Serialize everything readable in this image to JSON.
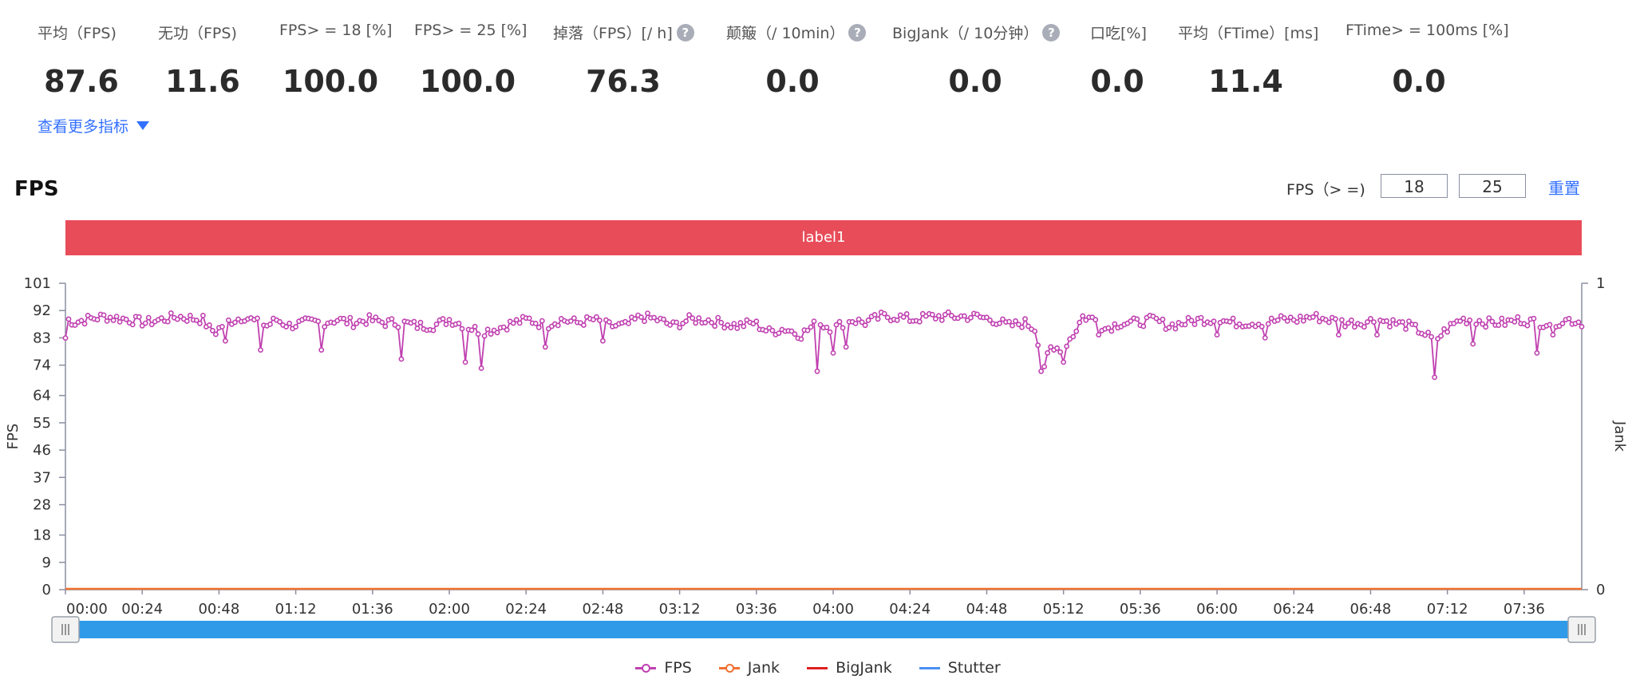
{
  "metrics": [
    {
      "label": "平均（FPS)",
      "value": "87.6",
      "help": false
    },
    {
      "label": "无功（FPS)",
      "value": "11.6",
      "help": false
    },
    {
      "label": "FPS> = 18 [%]",
      "value": "100.0",
      "help": false
    },
    {
      "label": "FPS> = 25 [%]",
      "value": "100.0",
      "help": false
    },
    {
      "label": "掉落（FPS）[/ h]",
      "value": "76.3",
      "help": true
    },
    {
      "label": "颠簸（/ 10min）",
      "value": "0.0",
      "help": true
    },
    {
      "label": "BigJank（/ 10分钟）",
      "value": "0.0",
      "help": true
    },
    {
      "label": "口吃[%]",
      "value": "0.0",
      "help": false
    },
    {
      "label": "平均（FTime）[ms]",
      "value": "11.4",
      "help": false
    },
    {
      "label": "FTime> = 100ms [%]",
      "value": "0.0",
      "help": false
    }
  ],
  "more_metrics_label": "查看更多指标",
  "section_title": "FPS",
  "threshold": {
    "label": "FPS（> =)",
    "low": "18",
    "high": "25",
    "reset_label": "重置"
  },
  "label_band": "label1",
  "colors": {
    "fps": "#c040b0",
    "jank": "#f07030",
    "bigjank": "#e02020",
    "stutter": "#4a90f0",
    "slider": "#2f9ae8",
    "label_band": "#e84c59",
    "link": "#3370ff"
  },
  "chart_data": {
    "type": "line",
    "title": "FPS",
    "ylabel": "FPS",
    "y2label": "Jank",
    "ylim": [
      0,
      101
    ],
    "y2lim": [
      0,
      1
    ],
    "yticks": [
      0,
      9,
      18,
      28,
      37,
      46,
      55,
      64,
      74,
      83,
      92,
      101
    ],
    "y2ticks": [
      0,
      1
    ],
    "xlim_seconds": [
      0,
      474
    ],
    "xtick_labels": [
      "00:00",
      "00:24",
      "00:48",
      "01:12",
      "01:36",
      "02:00",
      "02:24",
      "02:48",
      "03:12",
      "03:36",
      "04:00",
      "04:24",
      "04:48",
      "05:12",
      "05:36",
      "06:00",
      "06:24",
      "06:48",
      "07:12",
      "07:36"
    ],
    "legend": [
      "FPS",
      "Jank",
      "BigJank",
      "Stutter"
    ],
    "series": [
      {
        "name": "FPS",
        "axis": "left",
        "sample_interval_s": 1,
        "baseline": [
          [
            0,
            83
          ],
          [
            1,
            89
          ],
          [
            3,
            88
          ],
          [
            6,
            89
          ],
          [
            12,
            90
          ],
          [
            20,
            89
          ],
          [
            25,
            88
          ],
          [
            35,
            90
          ],
          [
            43,
            89
          ],
          [
            45,
            86
          ],
          [
            47,
            85
          ],
          [
            50,
            88
          ],
          [
            53,
            89
          ],
          [
            56,
            90
          ],
          [
            60,
            88
          ],
          [
            63,
            87
          ],
          [
            66,
            89
          ],
          [
            70,
            87
          ],
          [
            75,
            88
          ],
          [
            80,
            88
          ],
          [
            85,
            89
          ],
          [
            90,
            88
          ],
          [
            95,
            89
          ],
          [
            100,
            88
          ],
          [
            105,
            88
          ],
          [
            110,
            87
          ],
          [
            115,
            87
          ],
          [
            120,
            89
          ],
          [
            125,
            87
          ],
          [
            130,
            85
          ],
          [
            135,
            86
          ],
          [
            140,
            88
          ],
          [
            145,
            89
          ],
          [
            150,
            87
          ],
          [
            155,
            89
          ],
          [
            160,
            88
          ],
          [
            165,
            89
          ],
          [
            170,
            87
          ],
          [
            175,
            87
          ],
          [
            180,
            90
          ],
          [
            185,
            89
          ],
          [
            190,
            87
          ],
          [
            195,
            89
          ],
          [
            200,
            89
          ],
          [
            205,
            88
          ],
          [
            210,
            87
          ],
          [
            215,
            88
          ],
          [
            220,
            85
          ],
          [
            225,
            86
          ],
          [
            230,
            84
          ],
          [
            235,
            88
          ],
          [
            240,
            86
          ],
          [
            245,
            89
          ],
          [
            250,
            88
          ],
          [
            255,
            90
          ],
          [
            260,
            90
          ],
          [
            265,
            89
          ],
          [
            270,
            90
          ],
          [
            275,
            90
          ],
          [
            280,
            90
          ],
          [
            285,
            90
          ],
          [
            290,
            89
          ],
          [
            295,
            87
          ],
          [
            300,
            88
          ],
          [
            303,
            86
          ],
          [
            306,
            74
          ],
          [
            308,
            79
          ],
          [
            312,
            80
          ],
          [
            315,
            84
          ],
          [
            318,
            90
          ],
          [
            322,
            89
          ],
          [
            325,
            86
          ],
          [
            330,
            88
          ],
          [
            335,
            88
          ],
          [
            340,
            89
          ],
          [
            345,
            87
          ],
          [
            350,
            88
          ],
          [
            355,
            89
          ],
          [
            360,
            89
          ],
          [
            365,
            88
          ],
          [
            370,
            88
          ],
          [
            375,
            88
          ],
          [
            380,
            89
          ],
          [
            385,
            89
          ],
          [
            390,
            90
          ],
          [
            395,
            89
          ],
          [
            400,
            88
          ],
          [
            405,
            88
          ],
          [
            410,
            89
          ],
          [
            415,
            88
          ],
          [
            420,
            87
          ],
          [
            424,
            85
          ],
          [
            428,
            82
          ],
          [
            432,
            86
          ],
          [
            436,
            89
          ],
          [
            440,
            89
          ],
          [
            445,
            88
          ],
          [
            450,
            88
          ],
          [
            455,
            89
          ],
          [
            460,
            88
          ],
          [
            465,
            88
          ],
          [
            470,
            89
          ],
          [
            474,
            88
          ]
        ],
        "dips": [
          [
            50,
            82
          ],
          [
            61,
            79
          ],
          [
            80,
            79
          ],
          [
            105,
            76
          ],
          [
            125,
            75
          ],
          [
            130,
            73
          ],
          [
            150,
            80
          ],
          [
            168,
            82
          ],
          [
            235,
            72
          ],
          [
            240,
            78
          ],
          [
            244,
            80
          ],
          [
            305,
            72
          ],
          [
            309,
            79
          ],
          [
            312,
            75
          ],
          [
            323,
            84
          ],
          [
            360,
            84
          ],
          [
            375,
            83
          ],
          [
            398,
            84
          ],
          [
            410,
            84
          ],
          [
            428,
            70
          ],
          [
            440,
            81
          ],
          [
            460,
            78
          ],
          [
            465,
            84
          ]
        ],
        "range": [
          70,
          92
        ]
      },
      {
        "name": "Jank",
        "axis": "right",
        "value": 0
      },
      {
        "name": "BigJank",
        "axis": "right",
        "value": 0
      },
      {
        "name": "Stutter",
        "axis": "right",
        "value": 0
      }
    ]
  }
}
